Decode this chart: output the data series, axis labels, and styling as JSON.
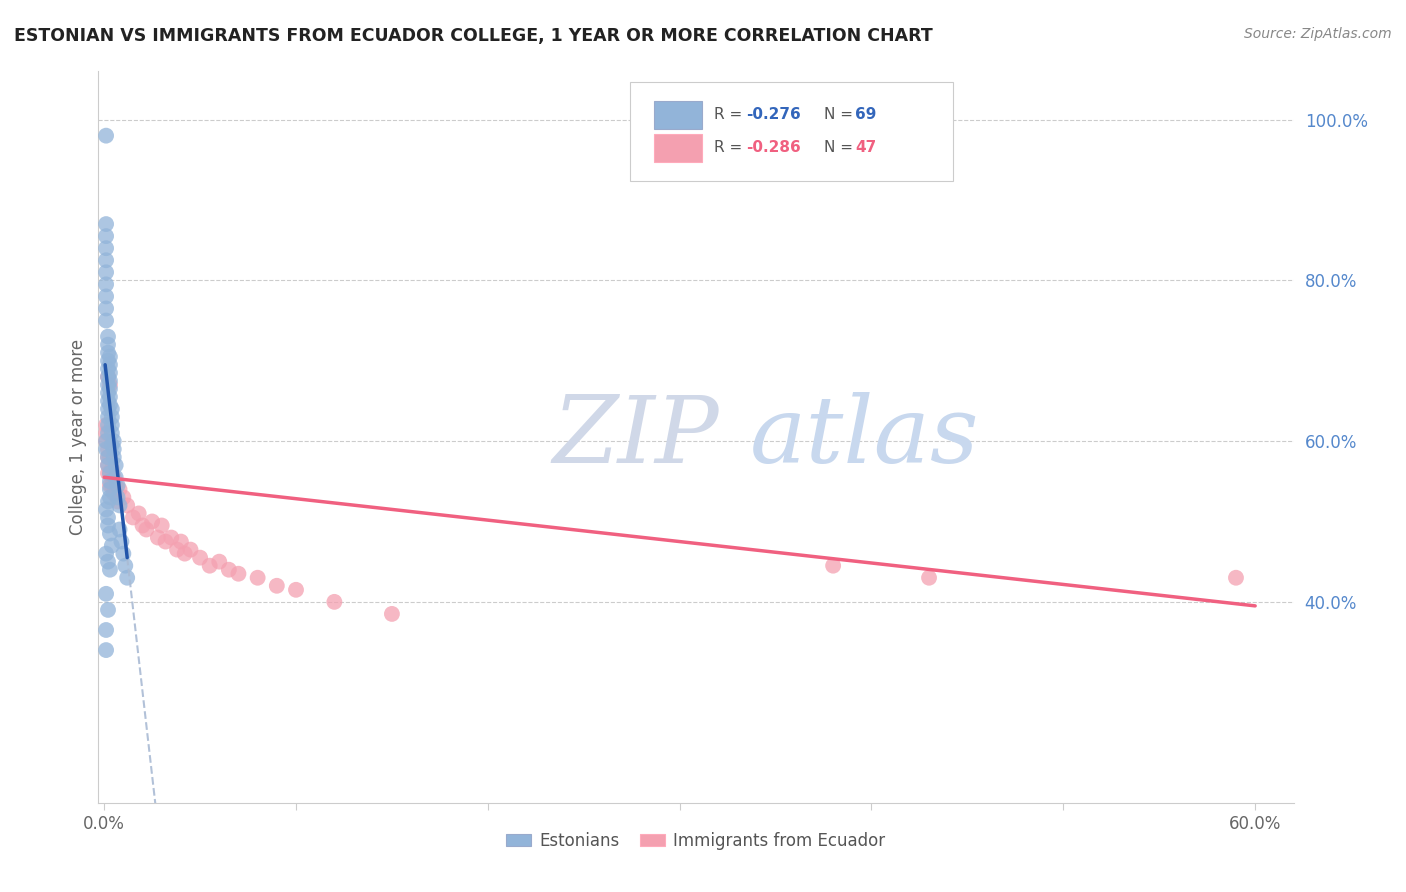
{
  "title": "ESTONIAN VS IMMIGRANTS FROM ECUADOR COLLEGE, 1 YEAR OR MORE CORRELATION CHART",
  "source": "Source: ZipAtlas.com",
  "ylabel": "College, 1 year or more",
  "right_yticks_labels": [
    "100.0%",
    "80.0%",
    "60.0%",
    "40.0%"
  ],
  "right_ytick_vals": [
    1.0,
    0.8,
    0.6,
    0.4
  ],
  "blue_color": "#92B4D9",
  "pink_color": "#F4A0B0",
  "blue_line_color": "#2255AA",
  "pink_line_color": "#F06080",
  "dashed_color": "#AABBD4",
  "watermark_zip": "ZIP",
  "watermark_atlas": "atlas",
  "estonians_x": [
    0.001,
    0.001,
    0.001,
    0.001,
    0.001,
    0.001,
    0.001,
    0.001,
    0.001,
    0.001,
    0.002,
    0.002,
    0.002,
    0.002,
    0.002,
    0.002,
    0.002,
    0.002,
    0.002,
    0.002,
    0.002,
    0.002,
    0.002,
    0.003,
    0.003,
    0.003,
    0.003,
    0.003,
    0.003,
    0.003,
    0.003,
    0.003,
    0.004,
    0.004,
    0.004,
    0.004,
    0.004,
    0.005,
    0.005,
    0.005,
    0.006,
    0.006,
    0.007,
    0.007,
    0.008,
    0.008,
    0.009,
    0.01,
    0.011,
    0.012,
    0.001,
    0.001,
    0.002,
    0.002,
    0.003,
    0.003,
    0.002,
    0.001,
    0.002,
    0.002,
    0.003,
    0.004,
    0.001,
    0.002,
    0.003,
    0.001,
    0.002,
    0.001,
    0.001
  ],
  "estonians_y": [
    0.98,
    0.87,
    0.855,
    0.84,
    0.825,
    0.81,
    0.795,
    0.78,
    0.765,
    0.75,
    0.73,
    0.72,
    0.71,
    0.7,
    0.69,
    0.68,
    0.67,
    0.66,
    0.65,
    0.64,
    0.63,
    0.62,
    0.61,
    0.705,
    0.695,
    0.685,
    0.675,
    0.665,
    0.655,
    0.645,
    0.56,
    0.55,
    0.64,
    0.63,
    0.62,
    0.61,
    0.595,
    0.6,
    0.59,
    0.58,
    0.57,
    0.555,
    0.545,
    0.53,
    0.52,
    0.49,
    0.475,
    0.46,
    0.445,
    0.43,
    0.6,
    0.59,
    0.58,
    0.57,
    0.54,
    0.53,
    0.525,
    0.515,
    0.505,
    0.495,
    0.485,
    0.47,
    0.46,
    0.45,
    0.44,
    0.41,
    0.39,
    0.365,
    0.34
  ],
  "ecuador_x": [
    0.001,
    0.001,
    0.001,
    0.002,
    0.002,
    0.002,
    0.002,
    0.003,
    0.003,
    0.003,
    0.004,
    0.004,
    0.005,
    0.005,
    0.006,
    0.007,
    0.008,
    0.01,
    0.012,
    0.015,
    0.018,
    0.02,
    0.022,
    0.025,
    0.028,
    0.03,
    0.032,
    0.035,
    0.038,
    0.04,
    0.042,
    0.045,
    0.05,
    0.055,
    0.06,
    0.065,
    0.07,
    0.08,
    0.09,
    0.1,
    0.12,
    0.15,
    0.38,
    0.43,
    0.59,
    0.002,
    0.003
  ],
  "ecuador_y": [
    0.62,
    0.61,
    0.6,
    0.59,
    0.58,
    0.57,
    0.56,
    0.58,
    0.56,
    0.545,
    0.565,
    0.545,
    0.555,
    0.535,
    0.545,
    0.525,
    0.54,
    0.53,
    0.52,
    0.505,
    0.51,
    0.495,
    0.49,
    0.5,
    0.48,
    0.495,
    0.475,
    0.48,
    0.465,
    0.475,
    0.46,
    0.465,
    0.455,
    0.445,
    0.45,
    0.44,
    0.435,
    0.43,
    0.42,
    0.415,
    0.4,
    0.385,
    0.445,
    0.43,
    0.43,
    0.68,
    0.67
  ],
  "xlim_min": -0.003,
  "xlim_max": 0.62,
  "ylim_min": 0.15,
  "ylim_max": 1.06,
  "blue_line_x0": 0.0005,
  "blue_line_x1": 0.012,
  "blue_line_y0": 0.695,
  "blue_line_y1": 0.455,
  "pink_line_x0": 0.0,
  "pink_line_x1": 0.6,
  "pink_line_y0": 0.555,
  "pink_line_y1": 0.395
}
